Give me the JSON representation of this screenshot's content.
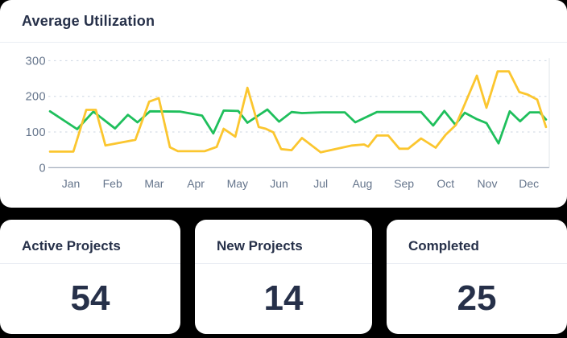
{
  "chart_card": {
    "title": "Average Utilization"
  },
  "chart_data": {
    "type": "line",
    "title": "Average Utilization",
    "months": [
      "Jan",
      "Feb",
      "Mar",
      "Apr",
      "May",
      "Jun",
      "Jul",
      "Aug",
      "Sep",
      "Oct",
      "Nov",
      "Dec"
    ],
    "y_ticks": [
      0,
      100,
      200,
      300
    ],
    "ylim": [
      0,
      320
    ],
    "grid": "dashed-horizontal",
    "x_unit": "month-index (0 = Jan tick, fractional = within-month samples)",
    "series": [
      {
        "name": "green-series",
        "color": "#1fbf5c",
        "points": [
          [
            -0.5,
            158
          ],
          [
            0.15,
            108
          ],
          [
            0.54,
            157
          ],
          [
            1.06,
            110
          ],
          [
            1.37,
            148
          ],
          [
            1.6,
            127
          ],
          [
            1.9,
            158
          ],
          [
            2.63,
            157
          ],
          [
            3.15,
            146
          ],
          [
            3.42,
            96
          ],
          [
            3.67,
            160
          ],
          [
            4.02,
            159
          ],
          [
            4.24,
            126
          ],
          [
            4.72,
            163
          ],
          [
            5.0,
            129
          ],
          [
            5.3,
            156
          ],
          [
            5.55,
            153
          ],
          [
            6.03,
            155
          ],
          [
            6.58,
            155
          ],
          [
            6.83,
            127
          ],
          [
            7.35,
            156
          ],
          [
            8.41,
            156
          ],
          [
            8.7,
            118
          ],
          [
            8.97,
            159
          ],
          [
            9.23,
            121
          ],
          [
            9.46,
            154
          ],
          [
            9.75,
            136
          ],
          [
            9.98,
            125
          ],
          [
            10.27,
            68
          ],
          [
            10.54,
            158
          ],
          [
            10.79,
            130
          ],
          [
            11.02,
            155
          ],
          [
            11.26,
            155
          ],
          [
            11.41,
            135
          ]
        ]
      },
      {
        "name": "yellow-series",
        "color": "#fbc62f",
        "points": [
          [
            -0.5,
            45
          ],
          [
            0.06,
            45
          ],
          [
            0.37,
            162
          ],
          [
            0.6,
            162
          ],
          [
            0.83,
            62
          ],
          [
            1.55,
            78
          ],
          [
            1.88,
            185
          ],
          [
            2.11,
            195
          ],
          [
            2.38,
            57
          ],
          [
            2.57,
            46
          ],
          [
            3.21,
            46
          ],
          [
            3.5,
            58
          ],
          [
            3.67,
            109
          ],
          [
            3.95,
            87
          ],
          [
            4.24,
            224
          ],
          [
            4.51,
            114
          ],
          [
            4.68,
            109
          ],
          [
            4.86,
            99
          ],
          [
            5.05,
            52
          ],
          [
            5.3,
            49
          ],
          [
            5.55,
            83
          ],
          [
            6.0,
            43
          ],
          [
            6.75,
            62
          ],
          [
            7.04,
            65
          ],
          [
            7.14,
            59
          ],
          [
            7.35,
            90
          ],
          [
            7.62,
            90
          ],
          [
            7.89,
            53
          ],
          [
            8.1,
            53
          ],
          [
            8.41,
            82
          ],
          [
            8.76,
            56
          ],
          [
            9.0,
            92
          ],
          [
            9.25,
            120
          ],
          [
            9.75,
            258
          ],
          [
            9.98,
            168
          ],
          [
            10.25,
            270
          ],
          [
            10.52,
            270
          ],
          [
            10.77,
            212
          ],
          [
            10.97,
            205
          ],
          [
            11.2,
            191
          ],
          [
            11.41,
            114
          ]
        ]
      }
    ],
    "axis_colors": {
      "label": "#64748b",
      "grid": "#cbd5e1",
      "zero_axis": "#9aa5b5",
      "right_border": "#dfe4ea"
    }
  },
  "stat_cards": [
    {
      "label": "Active Projects",
      "value": "54"
    },
    {
      "label": "New Projects",
      "value": "14"
    },
    {
      "label": "Completed",
      "value": "25"
    }
  ]
}
